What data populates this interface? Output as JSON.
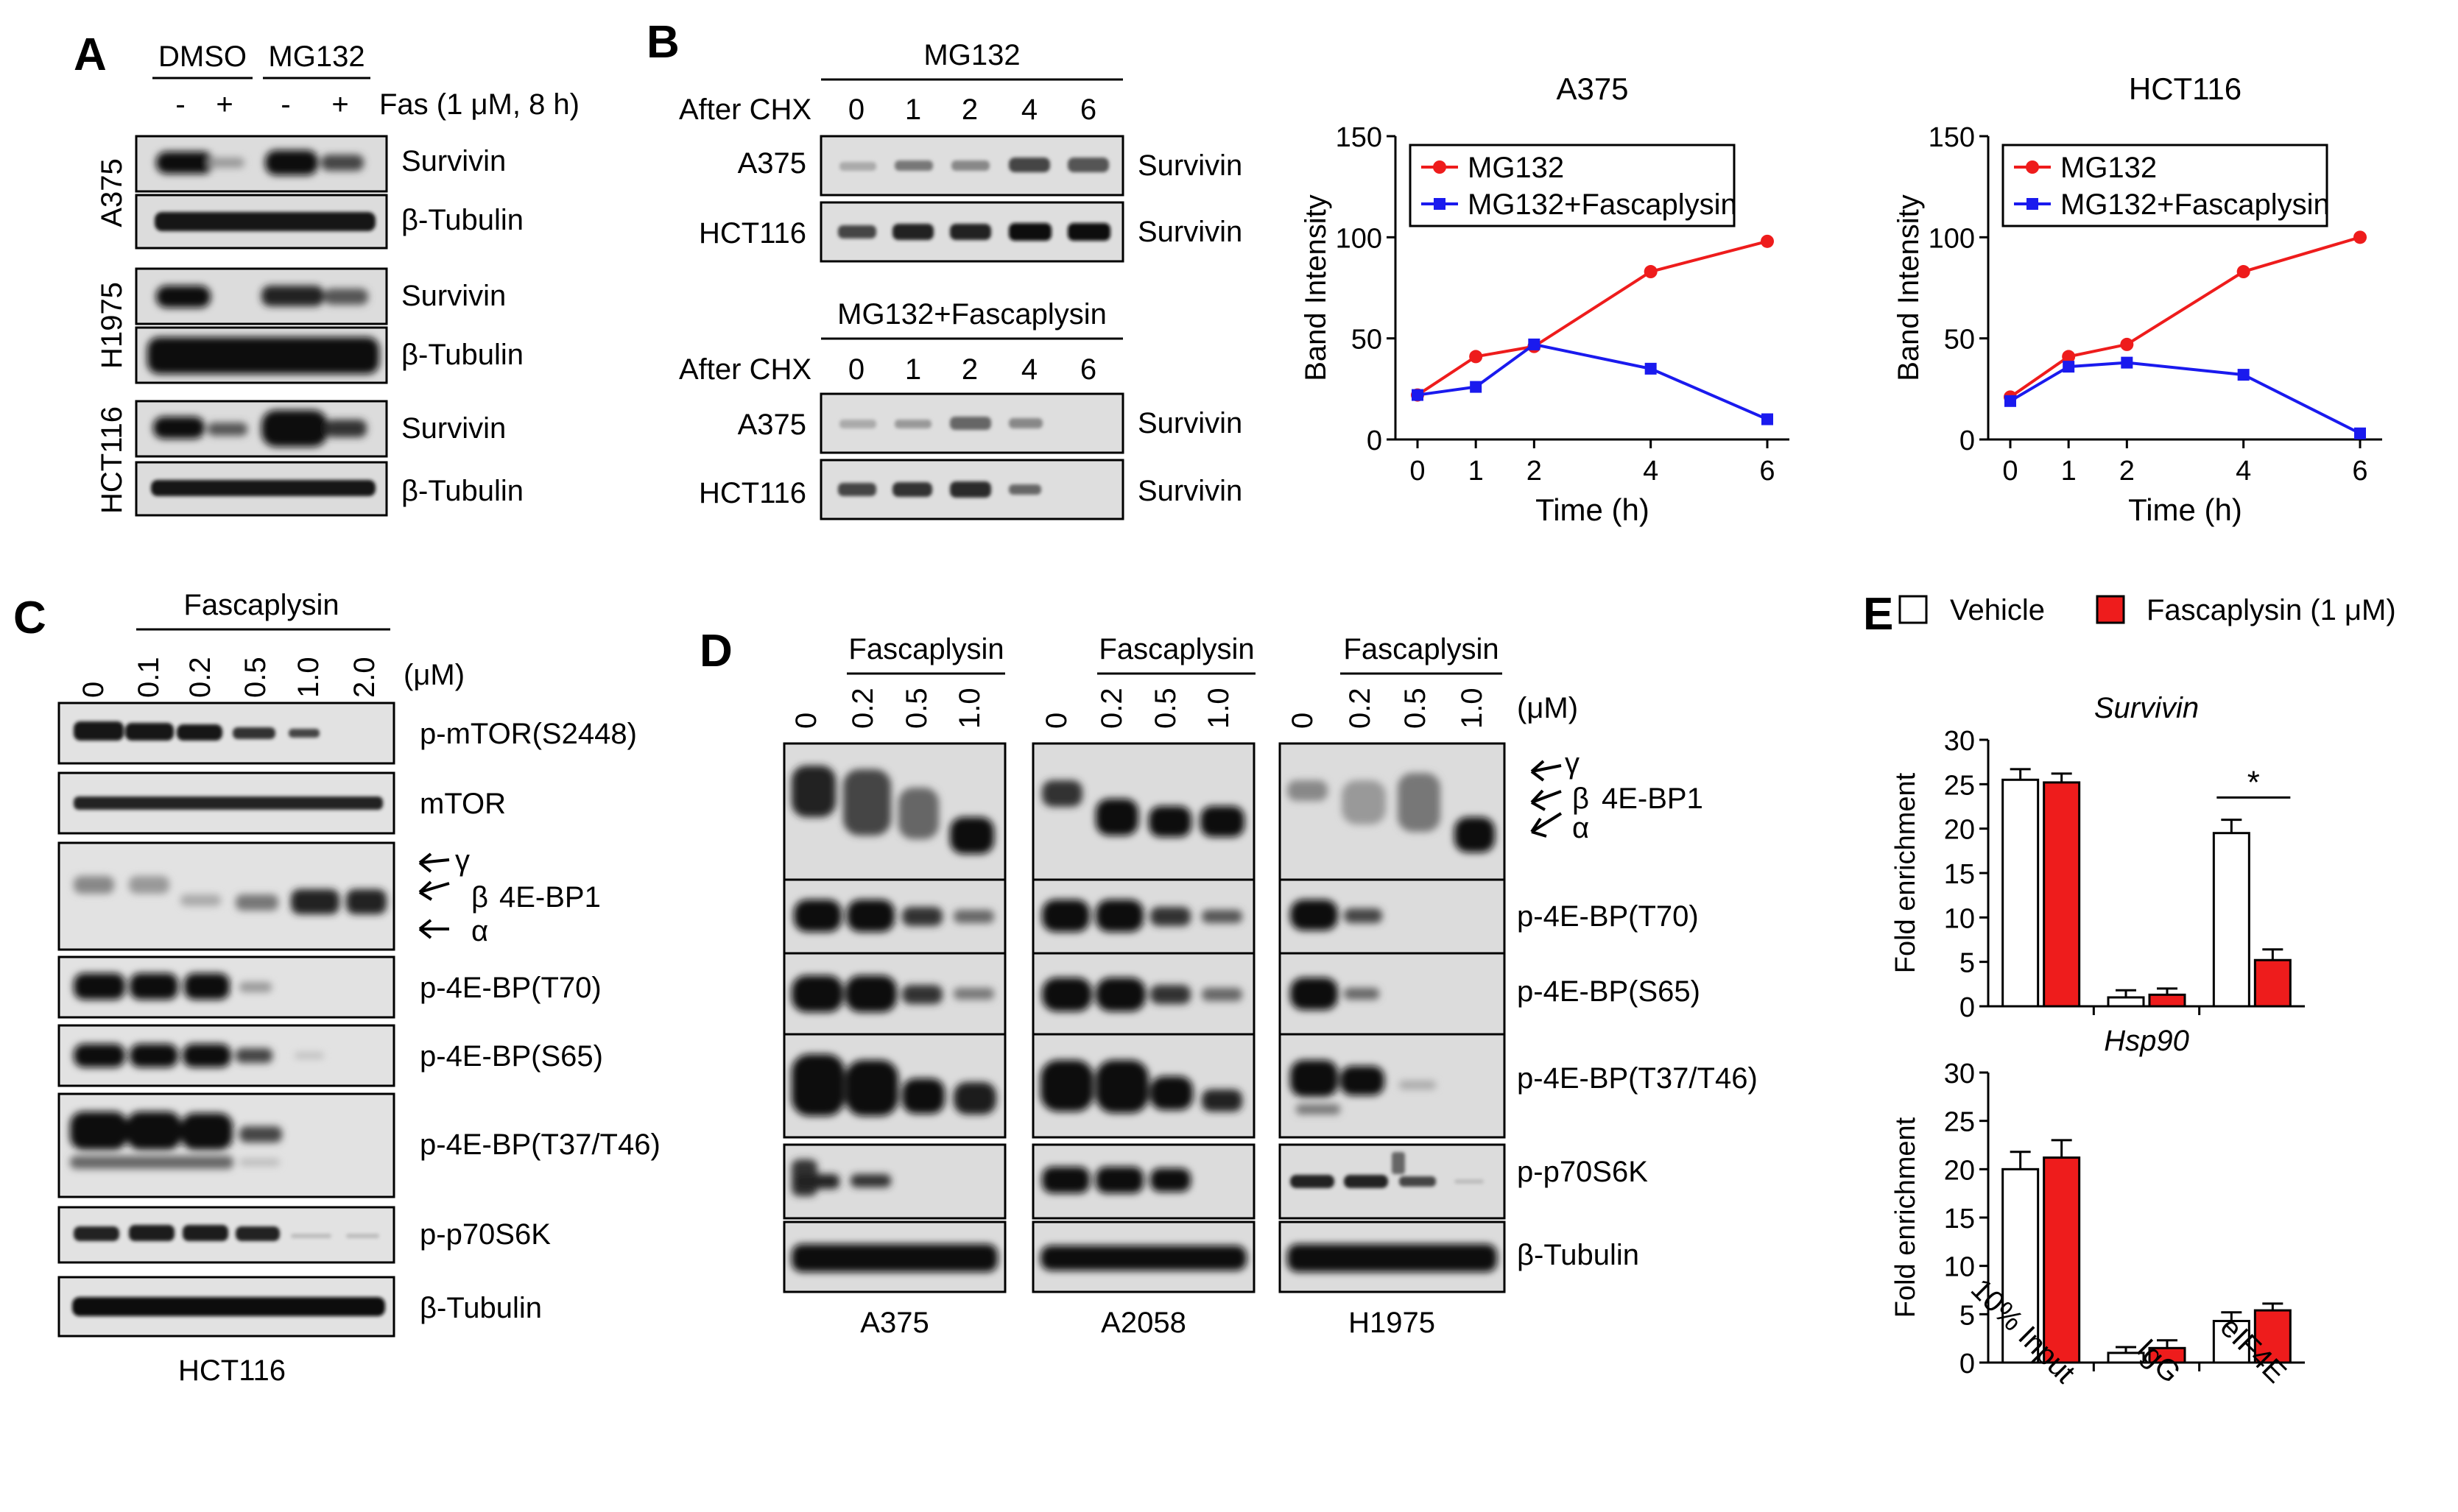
{
  "panel_letters": [
    "A",
    "B",
    "C",
    "D",
    "E"
  ],
  "panel_a": {
    "groups": [
      "DMSO",
      "MG132"
    ],
    "lane_signs": [
      "-",
      "+",
      "-",
      "+"
    ],
    "treatment": "Fas (1 μM, 8 h)",
    "cell_lines": [
      "A375",
      "H1975",
      "HCT116"
    ],
    "blot_labels": [
      "Survivin",
      "β-Tubulin"
    ]
  },
  "panel_b": {
    "header_top": "MG132",
    "header_bottom": "MG132+Fascaplysin",
    "after_chx": "After CHX",
    "times": [
      "0",
      "1",
      "2",
      "4",
      "6"
    ],
    "rows": [
      "A375",
      "HCT116"
    ],
    "band_label": "Survivin"
  },
  "panel_c": {
    "drug": "Fascaplysin",
    "doses": [
      "0",
      "0.1",
      "0.2",
      "0.5",
      "1.0",
      "2.0"
    ],
    "unit": "(μM)",
    "blot_labels": [
      "p-mTOR(S2448)",
      "mTOR",
      "4E-BP1",
      "p-4E-BP(T70)",
      "p-4E-BP(S65)",
      "p-4E-BP(T37/T46)",
      "p-p70S6K",
      "β-Tubulin"
    ],
    "isoforms": [
      "γ",
      "β",
      "α"
    ],
    "cell_line": "HCT116"
  },
  "panel_d": {
    "drug": "Fascaplysin",
    "doses": [
      "0",
      "0.2",
      "0.5",
      "1.0"
    ],
    "unit": "(μM)",
    "cell_lines": [
      "A375",
      "A2058",
      "H1975"
    ],
    "blot_labels": [
      "4E-BP1",
      "p-4E-BP(T70)",
      "p-4E-BP(S65)",
      "p-4E-BP(T37/T46)",
      "p-p70S6K",
      "β-Tubulin"
    ],
    "isoforms": [
      "γ",
      "β",
      "α"
    ]
  },
  "colors": {
    "red": "#ee1c1c",
    "blue": "#1a1aee",
    "black": "#000000",
    "band": "#222222",
    "blot_bg": "#d8d8d8"
  },
  "chart_data": [
    {
      "type": "line",
      "title": "A375",
      "xlabel": "Time (h)",
      "ylabel": "Band Intensity",
      "x": [
        0,
        1,
        2,
        4,
        6
      ],
      "ylim": [
        0,
        150
      ],
      "yticks": [
        0,
        50,
        100,
        150
      ],
      "legend": "top-left",
      "series": [
        {
          "name": "MG132",
          "color": "#ee1c1c",
          "marker": "circle",
          "values": [
            22,
            41,
            46,
            83,
            98
          ]
        },
        {
          "name": "MG132+Fascaplysin",
          "color": "#1a1aee",
          "marker": "square",
          "values": [
            22,
            26,
            47,
            35,
            10
          ]
        }
      ]
    },
    {
      "type": "line",
      "title": "HCT116",
      "xlabel": "Time (h)",
      "ylabel": "Band Intensity",
      "x": [
        0,
        1,
        2,
        4,
        6
      ],
      "ylim": [
        0,
        150
      ],
      "yticks": [
        0,
        50,
        100,
        150
      ],
      "legend": "top-left",
      "series": [
        {
          "name": "MG132",
          "color": "#ee1c1c",
          "marker": "circle",
          "values": [
            21,
            41,
            47,
            83,
            100
          ]
        },
        {
          "name": "MG132+Fascaplysin",
          "color": "#1a1aee",
          "marker": "square",
          "values": [
            19,
            36,
            38,
            32,
            3
          ]
        }
      ]
    },
    {
      "type": "bar",
      "title": "Survivin",
      "ylabel": "Fold enrichment",
      "ylim": [
        0,
        30
      ],
      "yticks": [
        0,
        5,
        10,
        15,
        20,
        25,
        30
      ],
      "categories": [
        "10% Input",
        "IgG",
        "eIF4E"
      ],
      "legend": "top",
      "significance": "*",
      "series": [
        {
          "name": "Vehicle",
          "color": "#ffffff",
          "values": [
            25.5,
            1.0,
            19.5
          ],
          "errors": [
            1.2,
            0.8,
            1.5
          ]
        },
        {
          "name": "Fascaplysin (1 μM)",
          "color": "#ee1c1c",
          "values": [
            25.2,
            1.3,
            5.2
          ],
          "errors": [
            1.0,
            0.7,
            1.2
          ]
        }
      ]
    },
    {
      "type": "bar",
      "title": "Hsp90",
      "ylabel": "Fold enrichment",
      "ylim": [
        0,
        30
      ],
      "yticks": [
        0,
        5,
        10,
        15,
        20,
        25,
        30
      ],
      "categories": [
        "10% Input",
        "IgG",
        "eIF4E"
      ],
      "series": [
        {
          "name": "Vehicle",
          "color": "#ffffff",
          "values": [
            20.0,
            1.0,
            4.3
          ],
          "errors": [
            1.8,
            0.6,
            0.9
          ]
        },
        {
          "name": "Fascaplysin (1 μM)",
          "color": "#ee1c1c",
          "values": [
            21.2,
            1.5,
            5.4
          ],
          "errors": [
            1.8,
            0.8,
            0.7
          ]
        }
      ]
    }
  ]
}
